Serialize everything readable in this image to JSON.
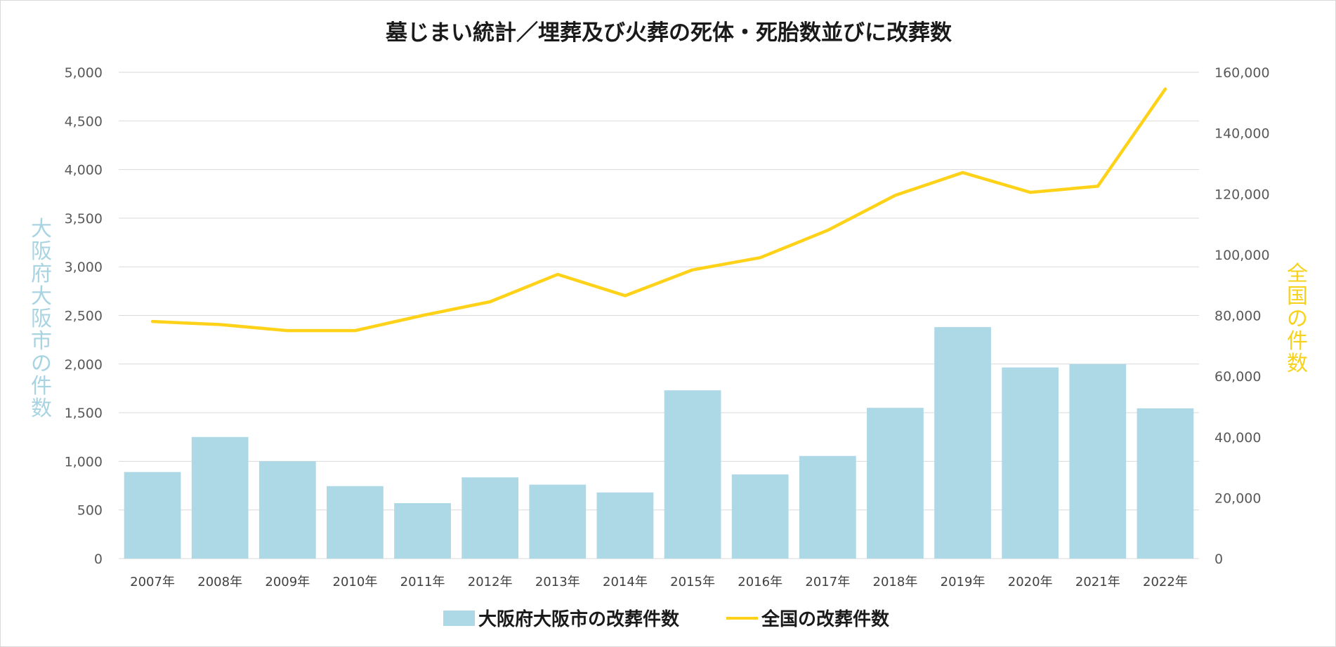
{
  "chart_data": {
    "type": "bar+line",
    "title": "墓じまい統計／埋葬及び火葬の死体・死胎数並びに改葬数",
    "categories": [
      "2007年",
      "2008年",
      "2009年",
      "2010年",
      "2011年",
      "2012年",
      "2013年",
      "2014年",
      "2015年",
      "2016年",
      "2017年",
      "2018年",
      "2019年",
      "2020年",
      "2021年",
      "2022年"
    ],
    "series": [
      {
        "name": "大阪府大阪市の改葬件数",
        "type": "bar",
        "axis": "left",
        "color": "#add8e6",
        "values": [
          890,
          1250,
          1000,
          745,
          570,
          835,
          760,
          680,
          1730,
          865,
          1055,
          1550,
          2380,
          1965,
          2000,
          1545
        ]
      },
      {
        "name": "全国の改葬件数",
        "type": "line",
        "axis": "right",
        "color": "#ffd21a",
        "values": [
          78000,
          77000,
          75000,
          75000,
          80000,
          84500,
          93500,
          86500,
          95000,
          99000,
          108000,
          119500,
          127000,
          120500,
          122500,
          154500
        ]
      }
    ],
    "left_axis": {
      "label": "大阪府大阪市の件数",
      "range": [
        0,
        5000
      ],
      "ticks": [
        "0",
        "500",
        "1,000",
        "1,500",
        "2,000",
        "2,500",
        "3,000",
        "3,500",
        "4,000",
        "4,500",
        "5,000"
      ]
    },
    "right_axis": {
      "label": "全国の件数",
      "range": [
        0,
        160000
      ],
      "ticks": [
        "0",
        "20,000",
        "40,000",
        "60,000",
        "80,000",
        "100,000",
        "120,000",
        "140,000",
        "160,000"
      ]
    },
    "grid": true,
    "legend_position": "bottom"
  }
}
